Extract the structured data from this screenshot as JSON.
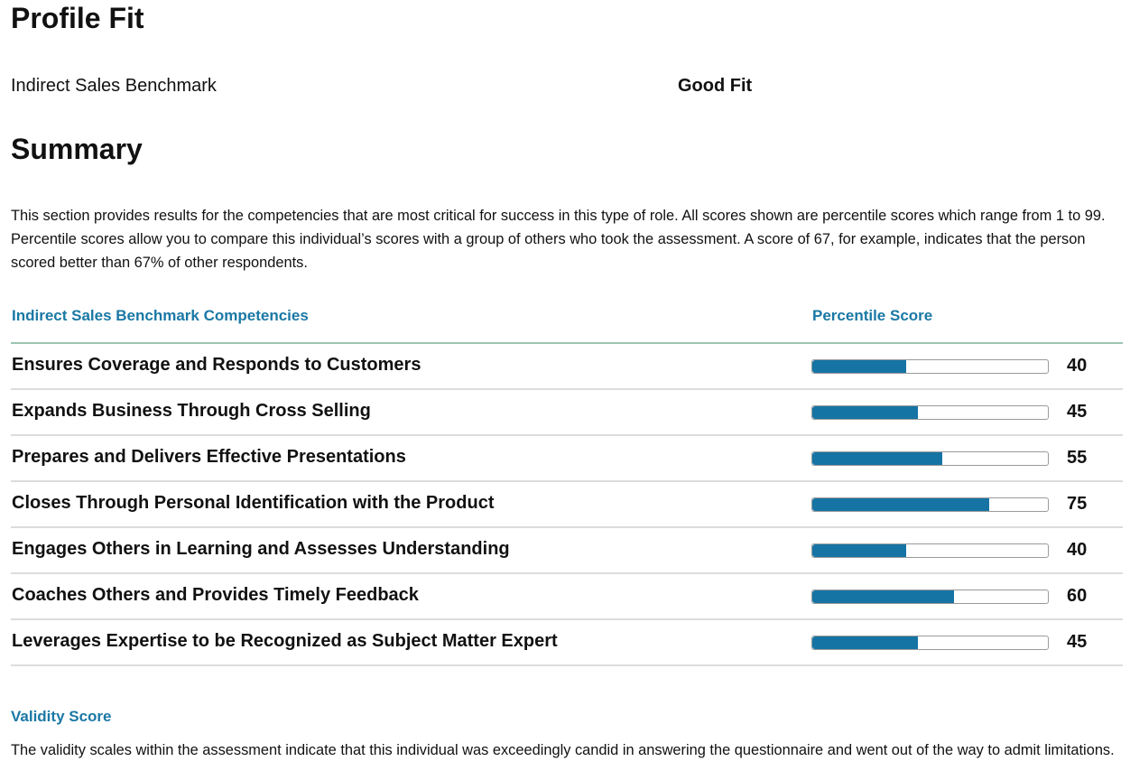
{
  "profile_fit": {
    "title": "Profile Fit",
    "benchmark_name": "Indirect Sales Benchmark",
    "fit_result": "Good Fit"
  },
  "summary": {
    "title": "Summary",
    "description": "This section provides results for the competencies that are most critical for success in this type of role. All scores shown are percentile scores which range from 1 to 99. Percentile scores allow you to compare this individual’s scores with a group of others who took the assessment. A score of 67, for example, indicates that the person scored better than 67% of other respondents."
  },
  "competency_table": {
    "column_competency": "Indirect Sales Benchmark Competencies",
    "column_score": "Percentile Score",
    "score_max": 100,
    "colors": {
      "header_text": "#1a78a5",
      "bar_fill": "#1674a4",
      "header_rule": "#9dc4b2"
    },
    "rows": [
      {
        "name": "Ensures Coverage and Responds to Customers",
        "score": 40
      },
      {
        "name": "Expands Business Through Cross Selling",
        "score": 45
      },
      {
        "name": "Prepares and Delivers Effective Presentations",
        "score": 55
      },
      {
        "name": "Closes Through Personal Identification with the Product",
        "score": 75
      },
      {
        "name": "Engages Others in Learning and Assesses Understanding",
        "score": 40
      },
      {
        "name": "Coaches Others and Provides Timely Feedback",
        "score": 60
      },
      {
        "name": "Leverages Expertise to be Recognized as Subject Matter Expert",
        "score": 45
      }
    ]
  },
  "validity": {
    "title": "Validity Score",
    "description": "The validity scales within the assessment indicate that this individual was exceedingly candid in answering the questionnaire and went out of the way to admit limitations."
  }
}
